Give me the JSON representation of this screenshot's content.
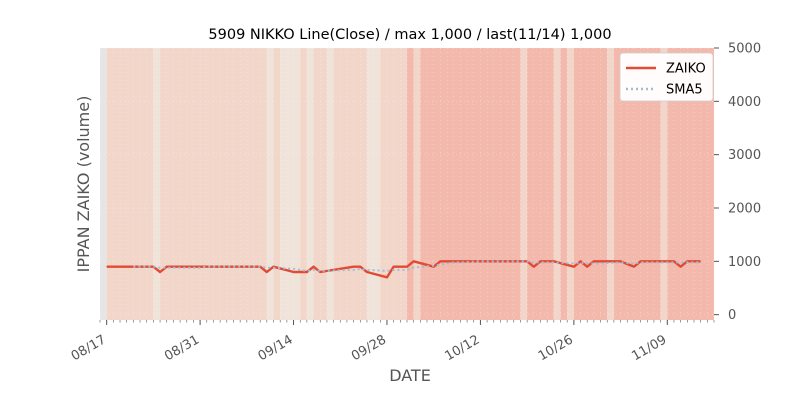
{
  "chart_data": {
    "type": "line",
    "title": "5909 NIKKO Line(Close) / max 1,000 / last(11/14) 1,000",
    "xlabel": "DATE",
    "ylabel": "IPPAN ZAIKO (volume)",
    "ylim": [
      -100,
      5000
    ],
    "y_ticks": [
      0,
      1000,
      2000,
      3000,
      4000,
      5000
    ],
    "y_axis_side": "right",
    "x_tick_labels": [
      "08/17",
      "08/31",
      "09/14",
      "09/28",
      "10/12",
      "10/26",
      "11/09"
    ],
    "x_ticks": [
      "2020-08-17",
      "2020-08-31",
      "2020-09-14",
      "2020-09-28",
      "2020-10-12",
      "2020-10-26",
      "2020-11-09"
    ],
    "xlim": [
      "2020-08-16",
      "2020-11-16"
    ],
    "grid": true,
    "legend": "top-right",
    "series": [
      {
        "name": "ZAIKO",
        "color": "#e24a33",
        "style": "solid",
        "points": [
          [
            "2020-08-17",
            900
          ],
          [
            "2020-08-18",
            900
          ],
          [
            "2020-08-19",
            900
          ],
          [
            "2020-08-20",
            900
          ],
          [
            "2020-08-21",
            900
          ],
          [
            "2020-08-24",
            900
          ],
          [
            "2020-08-25",
            800
          ],
          [
            "2020-08-26",
            900
          ],
          [
            "2020-08-27",
            900
          ],
          [
            "2020-08-28",
            900
          ],
          [
            "2020-08-31",
            900
          ],
          [
            "2020-09-01",
            900
          ],
          [
            "2020-09-02",
            900
          ],
          [
            "2020-09-03",
            900
          ],
          [
            "2020-09-04",
            900
          ],
          [
            "2020-09-07",
            900
          ],
          [
            "2020-09-08",
            900
          ],
          [
            "2020-09-09",
            900
          ],
          [
            "2020-09-10",
            800
          ],
          [
            "2020-09-11",
            900
          ],
          [
            "2020-09-14",
            800
          ],
          [
            "2020-09-15",
            800
          ],
          [
            "2020-09-16",
            800
          ],
          [
            "2020-09-17",
            900
          ],
          [
            "2020-09-18",
            800
          ],
          [
            "2020-09-23",
            900
          ],
          [
            "2020-09-24",
            900
          ],
          [
            "2020-09-25",
            800
          ],
          [
            "2020-09-28",
            700
          ],
          [
            "2020-09-29",
            900
          ],
          [
            "2020-09-30",
            900
          ],
          [
            "2020-10-01",
            900
          ],
          [
            "2020-10-02",
            1000
          ],
          [
            "2020-10-05",
            900
          ],
          [
            "2020-10-06",
            1000
          ],
          [
            "2020-10-07",
            1000
          ],
          [
            "2020-10-08",
            1000
          ],
          [
            "2020-10-09",
            1000
          ],
          [
            "2020-10-12",
            1000
          ],
          [
            "2020-10-13",
            1000
          ],
          [
            "2020-10-14",
            1000
          ],
          [
            "2020-10-15",
            1000
          ],
          [
            "2020-10-16",
            1000
          ],
          [
            "2020-10-19",
            1000
          ],
          [
            "2020-10-20",
            900
          ],
          [
            "2020-10-21",
            1000
          ],
          [
            "2020-10-22",
            1000
          ],
          [
            "2020-10-23",
            1000
          ],
          [
            "2020-10-26",
            900
          ],
          [
            "2020-10-27",
            1000
          ],
          [
            "2020-10-28",
            900
          ],
          [
            "2020-10-29",
            1000
          ],
          [
            "2020-10-30",
            1000
          ],
          [
            "2020-11-02",
            1000
          ],
          [
            "2020-11-04",
            900
          ],
          [
            "2020-11-05",
            1000
          ],
          [
            "2020-11-06",
            1000
          ],
          [
            "2020-11-09",
            1000
          ],
          [
            "2020-11-10",
            1000
          ],
          [
            "2020-11-11",
            900
          ],
          [
            "2020-11-12",
            1000
          ],
          [
            "2020-11-13",
            1000
          ],
          [
            "2020-11-14",
            1000
          ]
        ]
      },
      {
        "name": "SMA5",
        "color": "#9ebdd8",
        "style": "dotted",
        "points": [
          [
            "2020-08-21",
            900
          ],
          [
            "2020-08-24",
            900
          ],
          [
            "2020-08-25",
            880
          ],
          [
            "2020-08-26",
            880
          ],
          [
            "2020-08-27",
            880
          ],
          [
            "2020-08-28",
            880
          ],
          [
            "2020-08-31",
            880
          ],
          [
            "2020-09-01",
            900
          ],
          [
            "2020-09-02",
            900
          ],
          [
            "2020-09-03",
            900
          ],
          [
            "2020-09-04",
            900
          ],
          [
            "2020-09-07",
            900
          ],
          [
            "2020-09-08",
            900
          ],
          [
            "2020-09-09",
            900
          ],
          [
            "2020-09-10",
            880
          ],
          [
            "2020-09-11",
            880
          ],
          [
            "2020-09-14",
            860
          ],
          [
            "2020-09-15",
            840
          ],
          [
            "2020-09-16",
            820
          ],
          [
            "2020-09-17",
            840
          ],
          [
            "2020-09-18",
            820
          ],
          [
            "2020-09-23",
            840
          ],
          [
            "2020-09-24",
            860
          ],
          [
            "2020-09-25",
            840
          ],
          [
            "2020-09-28",
            820
          ],
          [
            "2020-09-29",
            840
          ],
          [
            "2020-09-30",
            840
          ],
          [
            "2020-10-01",
            840
          ],
          [
            "2020-10-02",
            880
          ],
          [
            "2020-10-05",
            920
          ],
          [
            "2020-10-06",
            940
          ],
          [
            "2020-10-07",
            960
          ],
          [
            "2020-10-08",
            980
          ],
          [
            "2020-10-09",
            980
          ],
          [
            "2020-10-12",
            1000
          ],
          [
            "2020-10-13",
            1000
          ],
          [
            "2020-10-14",
            1000
          ],
          [
            "2020-10-15",
            1000
          ],
          [
            "2020-10-16",
            1000
          ],
          [
            "2020-10-19",
            1000
          ],
          [
            "2020-10-20",
            980
          ],
          [
            "2020-10-21",
            980
          ],
          [
            "2020-10-22",
            980
          ],
          [
            "2020-10-23",
            980
          ],
          [
            "2020-10-26",
            960
          ],
          [
            "2020-10-27",
            980
          ],
          [
            "2020-10-28",
            960
          ],
          [
            "2020-10-29",
            960
          ],
          [
            "2020-10-30",
            960
          ],
          [
            "2020-11-02",
            980
          ],
          [
            "2020-11-04",
            960
          ],
          [
            "2020-11-05",
            980
          ],
          [
            "2020-11-06",
            980
          ],
          [
            "2020-11-09",
            980
          ],
          [
            "2020-11-10",
            980
          ],
          [
            "2020-11-11",
            980
          ],
          [
            "2020-11-12",
            980
          ],
          [
            "2020-11-13",
            980
          ],
          [
            "2020-11-14",
            980
          ]
        ]
      }
    ],
    "background_bands": [
      {
        "from": "2020-08-17",
        "to": "2020-08-24",
        "color": "#f3d6ca"
      },
      {
        "from": "2020-08-24",
        "to": "2020-08-25",
        "color": "#f0e4da"
      },
      {
        "from": "2020-08-25",
        "to": "2020-09-10",
        "color": "#f3d6ca"
      },
      {
        "from": "2020-09-10",
        "to": "2020-09-11",
        "color": "#f0e4da"
      },
      {
        "from": "2020-09-11",
        "to": "2020-09-12",
        "color": "#f3d6ca"
      },
      {
        "from": "2020-09-12",
        "to": "2020-09-15",
        "color": "#f0e4da"
      },
      {
        "from": "2020-09-15",
        "to": "2020-09-16",
        "color": "#f3d6ca"
      },
      {
        "from": "2020-09-16",
        "to": "2020-09-17",
        "color": "#f0e4da"
      },
      {
        "from": "2020-09-17",
        "to": "2020-09-19",
        "color": "#f3d6ca"
      },
      {
        "from": "2020-09-19",
        "to": "2020-09-20",
        "color": "#f0e4da"
      },
      {
        "from": "2020-09-20",
        "to": "2020-09-25",
        "color": "#f3d6ca"
      },
      {
        "from": "2020-09-25",
        "to": "2020-09-27",
        "color": "#f0e4da"
      },
      {
        "from": "2020-09-27",
        "to": "2020-10-01",
        "color": "#f3d6ca"
      },
      {
        "from": "2020-10-01",
        "to": "2020-10-02",
        "color": "#f3b9ac"
      },
      {
        "from": "2020-10-02",
        "to": "2020-10-03",
        "color": "#f3d6ca"
      },
      {
        "from": "2020-10-03",
        "to": "2020-10-18",
        "color": "#f3b9ac"
      },
      {
        "from": "2020-10-18",
        "to": "2020-10-19",
        "color": "#f3d6ca"
      },
      {
        "from": "2020-10-19",
        "to": "2020-10-23",
        "color": "#f3b9ac"
      },
      {
        "from": "2020-10-23",
        "to": "2020-10-24",
        "color": "#f3d6ca"
      },
      {
        "from": "2020-10-24",
        "to": "2020-10-25",
        "color": "#f3b9ac"
      },
      {
        "from": "2020-10-25",
        "to": "2020-10-26",
        "color": "#f3d6ca"
      },
      {
        "from": "2020-10-26",
        "to": "2020-10-31",
        "color": "#f3b9ac"
      },
      {
        "from": "2020-10-31",
        "to": "2020-11-01",
        "color": "#f3d6ca"
      },
      {
        "from": "2020-11-01",
        "to": "2020-11-08",
        "color": "#f3b9ac"
      },
      {
        "from": "2020-11-08",
        "to": "2020-11-09",
        "color": "#f3d6ca"
      },
      {
        "from": "2020-11-09",
        "to": "2020-11-16",
        "color": "#f3b9ac"
      }
    ]
  }
}
